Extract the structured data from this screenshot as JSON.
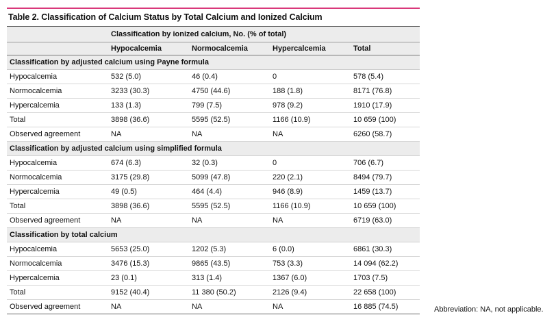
{
  "title": "Table 2. Classification of Calcium Status by Total Calcium and Ionized Calcium",
  "header": {
    "group_label": "Classification by ionized calcium, No. (% of total)",
    "columns": [
      "Hypocalcemia",
      "Normocalcemia",
      "Hypercalcemia",
      "Total"
    ]
  },
  "sections": [
    {
      "title": "Classification by adjusted calcium using Payne formula",
      "rows": [
        {
          "label": "Hypocalcemia",
          "cells": [
            "532 (5.0)",
            "46 (0.4)",
            "0",
            "578 (5.4)"
          ]
        },
        {
          "label": "Normocalcemia",
          "cells": [
            "3233 (30.3)",
            "4750 (44.6)",
            "188 (1.8)",
            "8171 (76.8)"
          ]
        },
        {
          "label": "Hypercalcemia",
          "cells": [
            "133 (1.3)",
            "799 (7.5)",
            "978 (9.2)",
            "1910 (17.9)"
          ]
        },
        {
          "label": "Total",
          "cells": [
            "3898 (36.6)",
            "5595 (52.5)",
            "1166 (10.9)",
            "10 659 (100)"
          ]
        },
        {
          "label": "Observed agreement",
          "cells": [
            "NA",
            "NA",
            "NA",
            "6260 (58.7)"
          ]
        }
      ]
    },
    {
      "title": "Classification by adjusted calcium using simplified formula",
      "rows": [
        {
          "label": "Hypocalcemia",
          "cells": [
            "674 (6.3)",
            "32 (0.3)",
            "0",
            "706 (6.7)"
          ]
        },
        {
          "label": "Normocalcemia",
          "cells": [
            "3175 (29.8)",
            "5099 (47.8)",
            "220 (2.1)",
            "8494 (79.7)"
          ]
        },
        {
          "label": "Hypercalcemia",
          "cells": [
            "49 (0.5)",
            "464 (4.4)",
            "946 (8.9)",
            "1459 (13.7)"
          ]
        },
        {
          "label": "Total",
          "cells": [
            "3898 (36.6)",
            "5595 (52.5)",
            "1166 (10.9)",
            "10 659 (100)"
          ]
        },
        {
          "label": "Observed agreement",
          "cells": [
            "NA",
            "NA",
            "NA",
            "6719 (63.0)"
          ]
        }
      ]
    },
    {
      "title": "Classification by total calcium",
      "rows": [
        {
          "label": "Hypocalcemia",
          "cells": [
            "5653 (25.0)",
            "1202 (5.3)",
            "6 (0.0)",
            "6861 (30.3)"
          ]
        },
        {
          "label": "Normocalcemia",
          "cells": [
            "3476 (15.3)",
            "9865 (43.5)",
            "753 (3.3)",
            "14 094 (62.2)"
          ]
        },
        {
          "label": "Hypercalcemia",
          "cells": [
            "23 (0.1)",
            "313 (1.4)",
            "1367 (6.0)",
            "1703 (7.5)"
          ]
        },
        {
          "label": "Total",
          "cells": [
            "9152 (40.4)",
            "11 380 (50.2)",
            "2126 (9.4)",
            "22 658 (100)"
          ]
        },
        {
          "label": "Observed agreement",
          "cells": [
            "NA",
            "NA",
            "NA",
            "16 885 (74.5)"
          ]
        }
      ]
    }
  ],
  "footnote": "Abbreviation: NA, not applicable.",
  "colors": {
    "accent_bar": "#d9387a",
    "shade": "#ececec"
  }
}
